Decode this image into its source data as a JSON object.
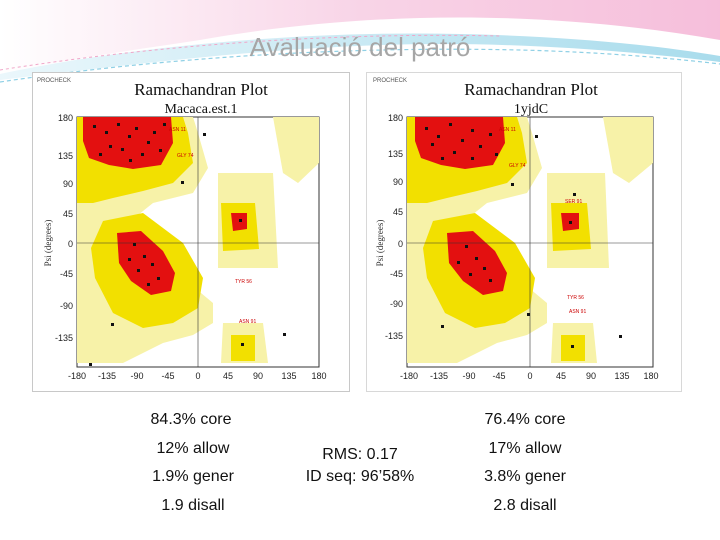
{
  "slide": {
    "title": "Avaluació del patró"
  },
  "plots": [
    {
      "tag": "PROCHECK",
      "title": "Ramachandran Plot",
      "subtitle": "Macaca.est.1",
      "ylabel": "Psi (degrees)",
      "x_ticks": [
        "-180",
        "-135",
        "-90",
        "-45",
        "0",
        "45",
        "90",
        "135",
        "180"
      ],
      "y_ticks": [
        "180",
        "135",
        "90",
        "45",
        "0",
        "-45",
        "-90",
        "-135"
      ],
      "labels": [
        "ASN 11",
        "GLY 74",
        "TYR 56",
        "ASN 91"
      ],
      "stats": [
        "84.3% core",
        "12% allow",
        "1.9% gener",
        "1.9 disall"
      ]
    },
    {
      "tag": "PROCHECK",
      "title": "Ramachandran Plot",
      "subtitle": "1yjdC",
      "ylabel": "Psi (degrees)",
      "x_ticks": [
        "-180",
        "-135",
        "-90",
        "-45",
        "0",
        "45",
        "90",
        "135",
        "180"
      ],
      "y_ticks": [
        "180",
        "135",
        "90",
        "45",
        "0",
        "-45",
        "-90",
        "-135"
      ],
      "labels": [
        "ASN 11",
        "GLY 74",
        "SER 91",
        "TYR 56",
        "ASN 91"
      ],
      "stats": [
        "76.4% core",
        "17% allow",
        "3.8% gener",
        "2.8 disall"
      ]
    }
  ],
  "comparison": {
    "rms": "RMS: 0.17",
    "id_seq": "ID seq: 96’58%"
  },
  "colors": {
    "core": "#e31010",
    "allowed": "#f2e000",
    "generous": "#f7f2a8",
    "title": "#a6a6a6"
  }
}
